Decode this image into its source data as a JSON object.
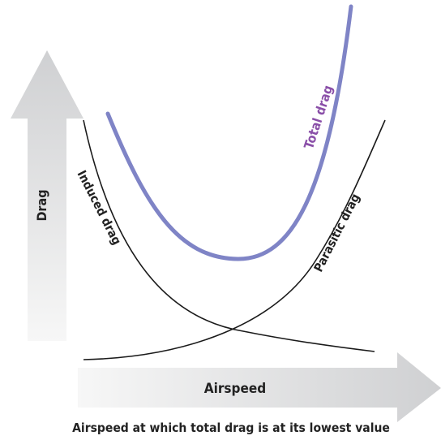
{
  "y_axis": {
    "label": "Drag"
  },
  "x_axis": {
    "label": "Airspeed"
  },
  "curves": {
    "induced": {
      "label": "Induced drag",
      "color": "#1a1a1a"
    },
    "parasitic": {
      "label": "Parasitic drag",
      "color": "#1a1a1a"
    },
    "total": {
      "label": "Total drag",
      "color": "#7f84c6",
      "label_color": "#8a4fa8"
    }
  },
  "caption": "Airspeed at which total drag is at its lowest value",
  "colors": {
    "axis_arrow_dark": "#cfd0d2",
    "axis_arrow_light": "#f6f6f6"
  }
}
